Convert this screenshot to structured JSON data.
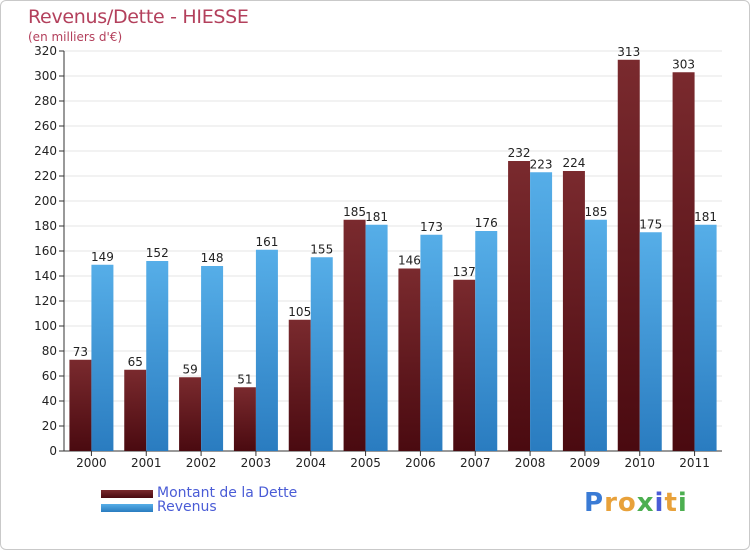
{
  "title": "Revenus/Dette - HIESSE",
  "subtitle": "(en milliers d'€)",
  "logo": {
    "text": "Proxiti",
    "letters": [
      "P",
      "r",
      "o",
      "x",
      "i",
      "t",
      "i"
    ],
    "colors": [
      "#3a7bd5",
      "#e8a13a",
      "#e8a13a",
      "#4caf50",
      "#4a5cd6",
      "#e8a13a",
      "#4caf50"
    ]
  },
  "legend": {
    "debt_label": "Montant de la Dette",
    "revenue_label": "Revenus",
    "position": "bottom-left"
  },
  "colors": {
    "debt": "#7a2a2e",
    "debt_dark": "#4a0a10",
    "revenue": "#56aee8",
    "revenue_dark": "#2a7cc0",
    "title": "#b3405c",
    "legend_text": "#4a5cd6",
    "grid": "#e6e6e6",
    "axis": "#333333"
  },
  "chart_data": {
    "type": "bar",
    "categories": [
      "2000",
      "2001",
      "2002",
      "2003",
      "2004",
      "2005",
      "2006",
      "2007",
      "2008",
      "2009",
      "2010",
      "2011"
    ],
    "series": [
      {
        "name": "Montant de la Dette",
        "values": [
          73,
          65,
          59,
          51,
          105,
          185,
          146,
          137,
          232,
          224,
          313,
          303
        ]
      },
      {
        "name": "Revenus",
        "values": [
          149,
          152,
          148,
          161,
          155,
          181,
          173,
          176,
          223,
          185,
          175,
          181
        ]
      }
    ],
    "ylim": [
      0,
      320
    ],
    "yticks": [
      0,
      20,
      40,
      60,
      80,
      100,
      120,
      140,
      160,
      180,
      200,
      220,
      240,
      260,
      280,
      300,
      320
    ],
    "grid": true,
    "title": "Revenus/Dette - HIESSE",
    "ylabel": "(en milliers d'€)",
    "xlabel": ""
  }
}
